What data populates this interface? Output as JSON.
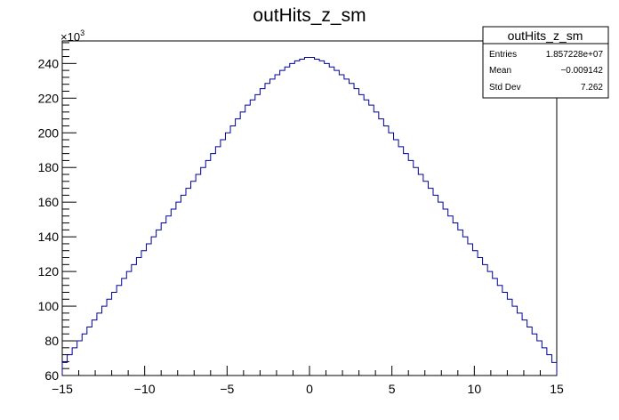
{
  "chart_data": {
    "type": "bar",
    "histogram": true,
    "title": "outHits_z_sm",
    "xlabel": "",
    "ylabel": "",
    "y_scale_label": "×10",
    "y_scale_exponent": "3",
    "xlim": [
      -15,
      15
    ],
    "ylim": [
      60,
      253
    ],
    "x_ticks": [
      -15,
      -10,
      -5,
      0,
      5,
      10,
      15
    ],
    "x_tick_labels": [
      "−15",
      "−10",
      "−5",
      "0",
      "5",
      "10",
      "15"
    ],
    "y_ticks": [
      60,
      80,
      100,
      120,
      140,
      160,
      180,
      200,
      220,
      240
    ],
    "y_tick_labels": [
      "60",
      "80",
      "100",
      "120",
      "140",
      "160",
      "180",
      "200",
      "220",
      "240"
    ],
    "bin_width": 0.3,
    "bin_centers_range": [
      -14.85,
      14.85
    ],
    "values": [
      67.5,
      72,
      76,
      80,
      84,
      88,
      92,
      96,
      100,
      104,
      108,
      112,
      116,
      120,
      124,
      128,
      132,
      136,
      140,
      144,
      148,
      152,
      156,
      160,
      164,
      168,
      172,
      176,
      180,
      184,
      188,
      192,
      196,
      200,
      204,
      208,
      212,
      216,
      219,
      222,
      225.5,
      228.5,
      231,
      233.5,
      236,
      238,
      240,
      241.5,
      242.5,
      243.5,
      243.5,
      242.5,
      241.5,
      240,
      238,
      236,
      233.5,
      231,
      228.5,
      225.5,
      222,
      219,
      216,
      212,
      208,
      204,
      200,
      196,
      192,
      188,
      184,
      180,
      176,
      172,
      168,
      164,
      160,
      156,
      152,
      148,
      144,
      140,
      136,
      132,
      128,
      124,
      120,
      116,
      112,
      108,
      104,
      100,
      96,
      92,
      88,
      84,
      80,
      76,
      72,
      67.5
    ],
    "line_color": "#000099",
    "grid": false,
    "stats_box": {
      "title": "outHits_z_sm",
      "rows": [
        {
          "label": "Entries",
          "value": "1.857228e+07"
        },
        {
          "label": "Mean",
          "value": "−0.009142"
        },
        {
          "label": "Std Dev",
          "value": "7.262"
        }
      ],
      "placement": "top-right"
    }
  }
}
